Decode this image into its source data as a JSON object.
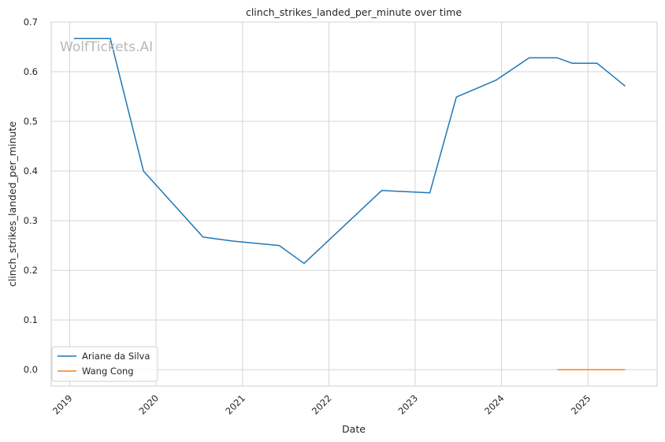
{
  "watermark": "WolfTickets.AI",
  "chart_data": {
    "type": "line",
    "title": "clinch_strikes_landed_per_minute over time",
    "xlabel": "Date",
    "ylabel": "clinch_strikes_landed_per_minute",
    "x_axis_type": "date",
    "xlim": [
      "2018-10-15",
      "2025-10-20"
    ],
    "ylim": [
      -0.033,
      0.7
    ],
    "x_ticks": [
      "2019",
      "2020",
      "2021",
      "2022",
      "2023",
      "2024",
      "2025"
    ],
    "y_ticks": [
      "0.0",
      "0.1",
      "0.2",
      "0.3",
      "0.4",
      "0.5",
      "0.6",
      "0.7"
    ],
    "grid": true,
    "legend_position": "lower-left",
    "series": [
      {
        "name": "Ariane da Silva",
        "color": "#1f77b4",
        "points": [
          {
            "x": "2019-01-19",
            "y": 0.667
          },
          {
            "x": "2019-06-22",
            "y": 0.667
          },
          {
            "x": "2019-11-09",
            "y": 0.4
          },
          {
            "x": "2020-07-18",
            "y": 0.267
          },
          {
            "x": "2020-11-21",
            "y": 0.259
          },
          {
            "x": "2021-06-05",
            "y": 0.25
          },
          {
            "x": "2021-09-18",
            "y": 0.214
          },
          {
            "x": "2022-08-13",
            "y": 0.361
          },
          {
            "x": "2023-03-04",
            "y": 0.356
          },
          {
            "x": "2023-06-24",
            "y": 0.549
          },
          {
            "x": "2023-12-09",
            "y": 0.583
          },
          {
            "x": "2024-04-27",
            "y": 0.628
          },
          {
            "x": "2024-08-24",
            "y": 0.628
          },
          {
            "x": "2024-10-26",
            "y": 0.617
          },
          {
            "x": "2025-02-08",
            "y": 0.617
          },
          {
            "x": "2025-06-07",
            "y": 0.571
          }
        ]
      },
      {
        "name": "Wang Cong",
        "color": "#ff7f0e",
        "points": [
          {
            "x": "2024-08-24",
            "y": 0.0
          },
          {
            "x": "2024-10-26",
            "y": 0.0
          },
          {
            "x": "2025-02-08",
            "y": 0.0
          },
          {
            "x": "2025-06-07",
            "y": 0.0
          }
        ]
      }
    ]
  }
}
